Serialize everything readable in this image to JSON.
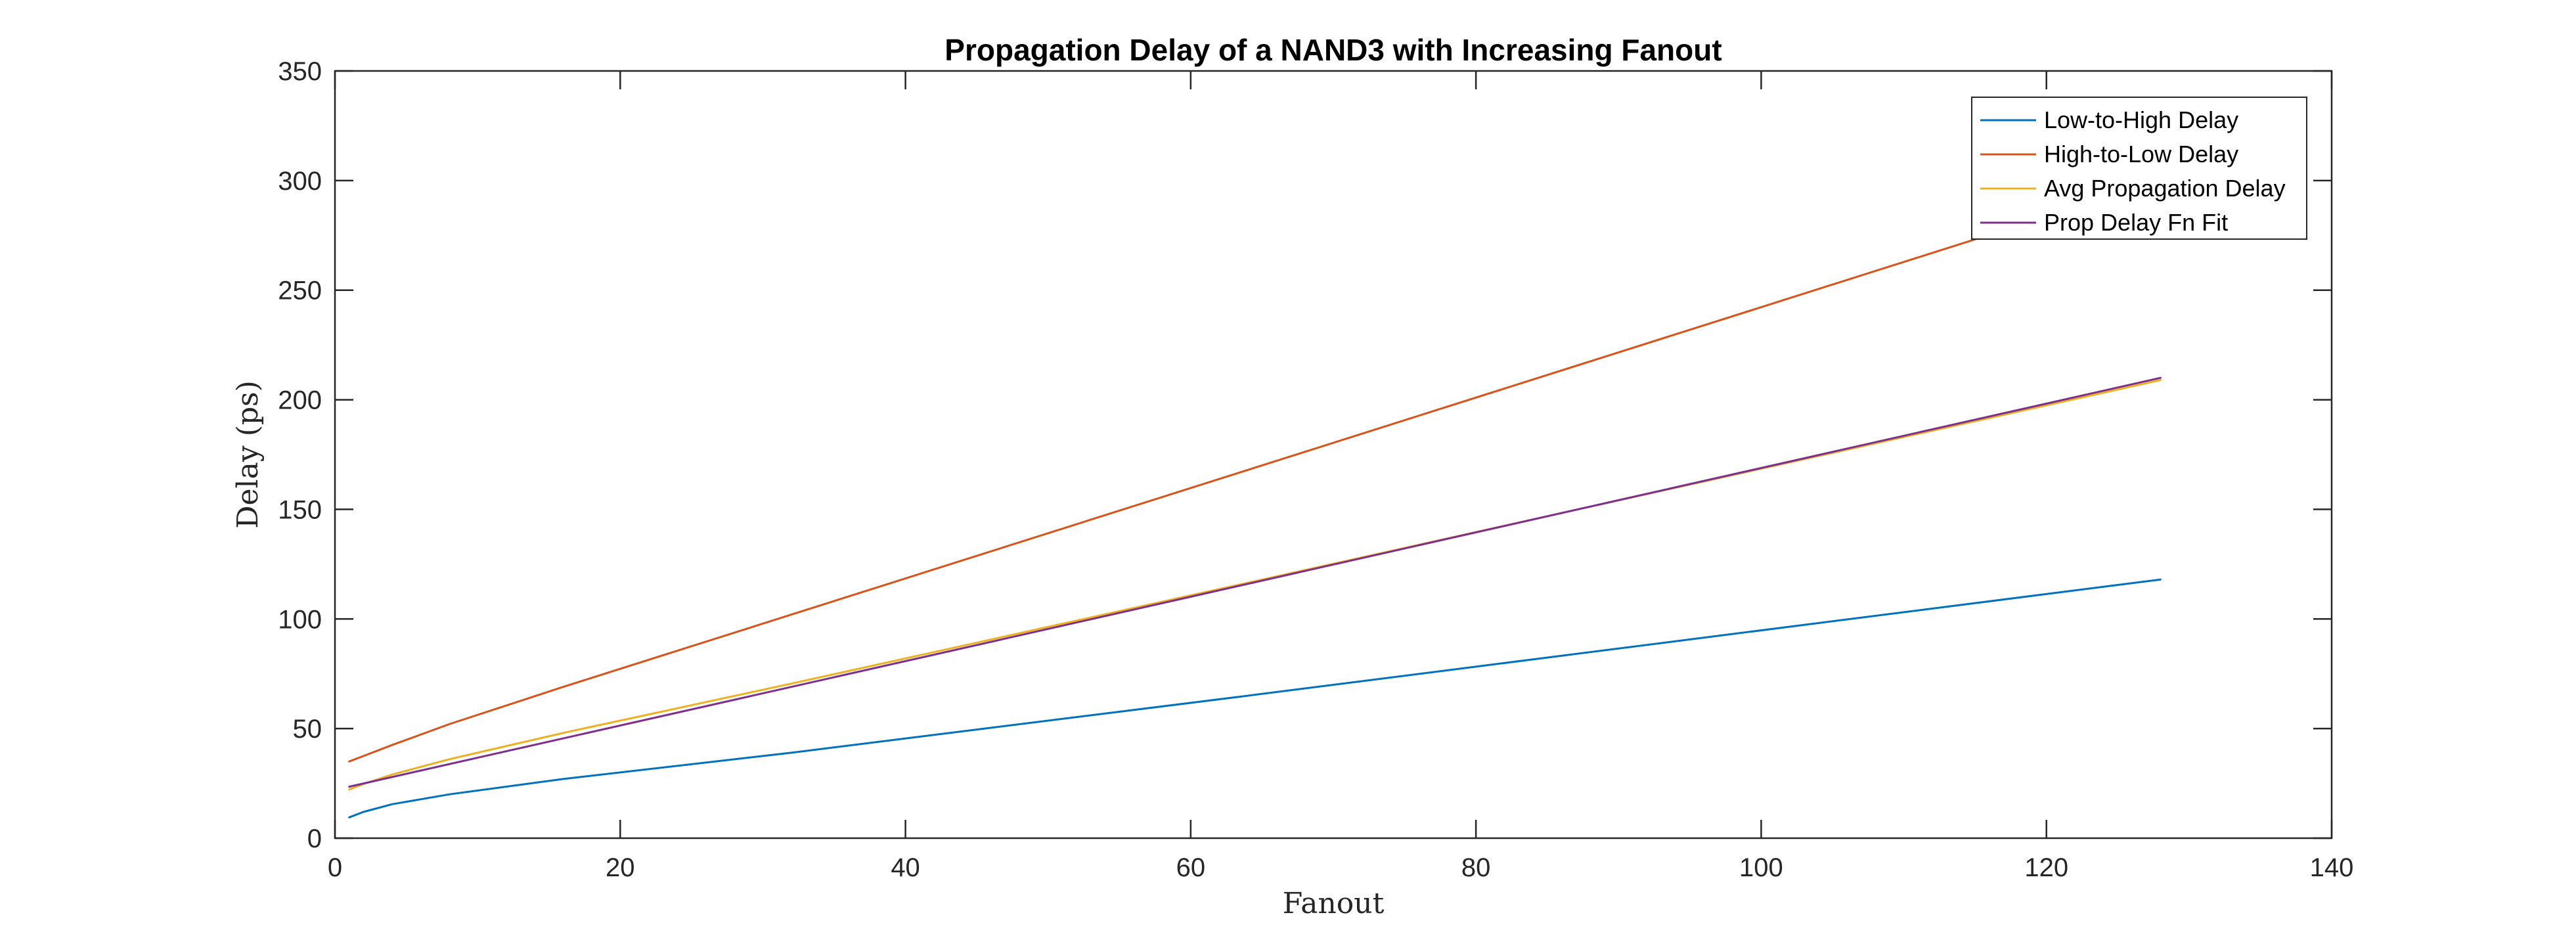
{
  "chart_data": {
    "type": "line",
    "title": "Propagation Delay of a NAND3 with Increasing Fanout",
    "xlabel": "Fanout",
    "ylabel": "Delay (ps)",
    "xlim": [
      0,
      140
    ],
    "ylim": [
      0,
      350
    ],
    "xticks": [
      0,
      20,
      40,
      60,
      80,
      100,
      120,
      140
    ],
    "yticks": [
      0,
      50,
      100,
      150,
      200,
      250,
      300,
      350
    ],
    "grid": false,
    "legend_position": "top-right",
    "series": [
      {
        "name": "Low-to-High Delay",
        "color": "#0072BD",
        "x": [
          1,
          2,
          4,
          8,
          16,
          32,
          64,
          128
        ],
        "y": [
          9.5,
          12,
          15.5,
          20,
          27,
          39,
          65,
          118
        ]
      },
      {
        "name": "High-to-Low Delay",
        "color": "#D95319",
        "x": [
          1,
          2,
          4,
          8,
          16,
          32,
          64,
          128
        ],
        "y": [
          35,
          37.5,
          42.5,
          52,
          69,
          102,
          168,
          300
        ]
      },
      {
        "name": "Avg Propagation Delay",
        "color": "#EDB120",
        "x": [
          1,
          2,
          4,
          8,
          16,
          32,
          64,
          128
        ],
        "y": [
          22.2,
          24.7,
          29,
          36,
          48,
          70.5,
          116.5,
          209
        ]
      },
      {
        "name": "Prop Delay Fn Fit",
        "color": "#7E2F8E",
        "x": [
          1,
          128
        ],
        "y": [
          23.5,
          210
        ]
      }
    ]
  }
}
